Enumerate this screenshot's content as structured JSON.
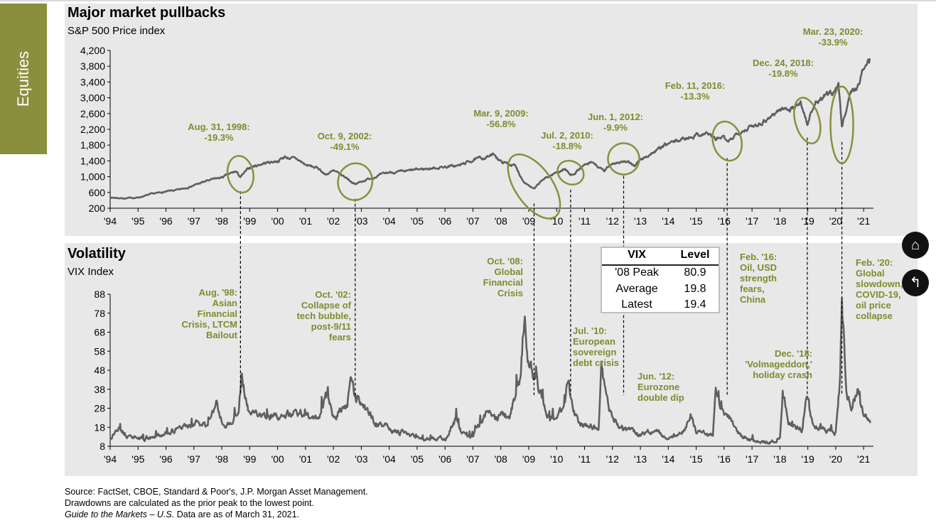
{
  "side_tab": "Equities",
  "top_title": "Major market pullbacks",
  "top_subtitle": "S&P 500 Price index",
  "bottom_title": "Volatility",
  "bottom_subtitle": "VIX Index",
  "vix_table": {
    "headers": [
      "VIX",
      "Level"
    ],
    "rows": [
      {
        "label": "'08 Peak",
        "value": "80.9"
      },
      {
        "label": "Average",
        "value": "19.8"
      },
      {
        "label": "Latest",
        "value": "19.4"
      }
    ]
  },
  "footer": {
    "line1": "Source: FactSet, CBOE, Standard & Poor's, J.P. Morgan Asset Management.",
    "line2": "Drawdowns are calculated as the prior peak to the lowest point.",
    "line3_italic": "Guide to the Markets – U.S.",
    "line3_rest": " Data are as of March 31, 2021."
  },
  "nav_buttons": [
    {
      "name": "home-icon",
      "glyph": "⌂"
    },
    {
      "name": "back-arrow-icon",
      "glyph": "↰"
    }
  ],
  "colors": {
    "accent": "#8a8f3e",
    "annotation": "#7e8b2e",
    "line": "#5f5f5f",
    "panel": "#e8e8e8"
  },
  "chart_data": [
    {
      "type": "line",
      "title": "Major market pullbacks",
      "ylabel": "S&P 500 Price index",
      "ylim": [
        200,
        4200
      ],
      "yticks": [
        200,
        600,
        1000,
        1400,
        1800,
        2200,
        2600,
        3000,
        3400,
        3800,
        4200
      ],
      "ytick_labels": [
        "200",
        "600",
        "1,000",
        "1,400",
        "1,800",
        "2,200",
        "2,600",
        "3,000",
        "3,400",
        "3,800",
        "4,200"
      ],
      "xlim": [
        1994,
        2021.25
      ],
      "xticks": [
        "'94",
        "'95",
        "'96",
        "'97",
        "'98",
        "'99",
        "'00",
        "'01",
        "'02",
        "'03",
        "'04",
        "'05",
        "'06",
        "'07",
        "'08",
        "'09",
        "'10",
        "'11",
        "'12",
        "'13",
        "'14",
        "'15",
        "'16",
        "'17",
        "'18",
        "'19",
        "'20",
        "'21"
      ],
      "series": [
        {
          "x": [
            1994,
            1994.5,
            1995,
            1995.5,
            1996,
            1996.5,
            1997,
            1997.5,
            1998,
            1998.5,
            1998.67,
            1999,
            1999.5,
            2000,
            2000.25,
            2000.7,
            2001,
            2001.5,
            2001.7,
            2002,
            2002.5,
            2002.78,
            2003,
            2003.5,
            2004,
            2004.5,
            2005,
            2005.5,
            2006,
            2006.5,
            2007,
            2007.5,
            2007.78,
            2008,
            2008.5,
            2008.8,
            2009.19,
            2009.5,
            2010,
            2010.3,
            2010.5,
            2011,
            2011.3,
            2011.7,
            2012,
            2012.4,
            2012.8,
            2013,
            2013.5,
            2014,
            2014.5,
            2015,
            2015.4,
            2015.7,
            2016,
            2016.11,
            2016.5,
            2017,
            2017.5,
            2018,
            2018.5,
            2018.75,
            2018.98,
            2019.3,
            2019.5,
            2020,
            2020.1,
            2020.22,
            2020.5,
            2020.8,
            2021,
            2021.24
          ],
          "y": [
            470,
            450,
            470,
            560,
            620,
            670,
            780,
            900,
            980,
            1130,
            990,
            1230,
            1340,
            1400,
            1500,
            1440,
            1300,
            1200,
            1050,
            1140,
            960,
            800,
            880,
            1000,
            1110,
            1120,
            1180,
            1210,
            1250,
            1280,
            1420,
            1500,
            1560,
            1380,
            1280,
            900,
            680,
            920,
            1110,
            1200,
            1030,
            1280,
            1350,
            1130,
            1350,
            1380,
            1290,
            1420,
            1630,
            1830,
            1950,
            2060,
            2110,
            1950,
            2000,
            1830,
            2140,
            2270,
            2450,
            2700,
            2750,
            2900,
            2350,
            2900,
            2950,
            3230,
            3380,
            2240,
            3100,
            3300,
            3750,
            3970
          ]
        }
      ],
      "annotations": [
        {
          "date": "Aug. 31, 1998:",
          "drawdown": "-19.3%"
        },
        {
          "date": "Oct. 9, 2002:",
          "drawdown": "-49.1%"
        },
        {
          "date": "Mar. 9, 2009:",
          "drawdown": "-56.8%"
        },
        {
          "date": "Jul. 2, 2010:",
          "drawdown": "-18.8%"
        },
        {
          "date": "Jun. 1, 2012:",
          "drawdown": "-9.9%"
        },
        {
          "date": "Feb. 11, 2016:",
          "drawdown": "-13.3%"
        },
        {
          "date": "Dec. 24, 2018:",
          "drawdown": "-19.8%"
        },
        {
          "date": "Mar. 23, 2020:",
          "drawdown": "-33.9%"
        }
      ]
    },
    {
      "type": "line",
      "title": "Volatility",
      "ylabel": "VIX Index",
      "ylim": [
        8,
        88
      ],
      "yticks": [
        8,
        18,
        28,
        38,
        48,
        58,
        68,
        78,
        88
      ],
      "xlim": [
        1994,
        2021.25
      ],
      "xticks": [
        "'94",
        "'95",
        "'96",
        "'97",
        "'98",
        "'99",
        "'00",
        "'01",
        "'02",
        "'03",
        "'04",
        "'05",
        "'06",
        "'07",
        "'08",
        "'09",
        "'10",
        "'11",
        "'12",
        "'13",
        "'14",
        "'15",
        "'16",
        "'17",
        "'18",
        "'19",
        "'20",
        "'21"
      ],
      "series": [
        {
          "x": [
            1994,
            1994.3,
            1994.6,
            1995,
            1995.5,
            1996,
            1996.5,
            1997,
            1997.5,
            1997.8,
            1998,
            1998.4,
            1998.6,
            1998.7,
            1998.8,
            1999,
            1999.5,
            2000,
            2000.5,
            2001,
            2001.5,
            2001.7,
            2001.9,
            2002,
            2002.5,
            2002.6,
            2002.8,
            2003,
            2003.5,
            2004,
            2004.5,
            2005,
            2005.5,
            2006,
            2006.4,
            2006.6,
            2007,
            2007.2,
            2007.6,
            2007.8,
            2008,
            2008.3,
            2008.7,
            2008.85,
            2009,
            2009.3,
            2009.6,
            2010,
            2010.3,
            2010.4,
            2010.6,
            2011,
            2011.5,
            2011.6,
            2011.8,
            2012,
            2012.5,
            2013,
            2013.5,
            2014,
            2014.6,
            2014.8,
            2015,
            2015.6,
            2015.7,
            2016,
            2016.1,
            2016.5,
            2017,
            2017.5,
            2018,
            2018.1,
            2018.3,
            2018.8,
            2018.95,
            2019.2,
            2019.6,
            2020,
            2020.15,
            2020.22,
            2020.4,
            2020.6,
            2020.8,
            2021,
            2021.24
          ],
          "y": [
            12,
            18,
            14,
            12,
            12,
            15,
            17,
            20,
            19,
            30,
            21,
            20,
            28,
            46,
            38,
            24,
            25,
            23,
            25,
            25,
            22,
            36,
            31,
            24,
            30,
            45,
            34,
            30,
            21,
            17,
            15,
            13,
            12,
            12,
            22,
            15,
            13,
            19,
            28,
            22,
            25,
            23,
            45,
            81,
            50,
            40,
            28,
            21,
            30,
            45,
            24,
            19,
            18,
            48,
            32,
            22,
            18,
            14,
            16,
            12,
            17,
            26,
            15,
            14,
            40,
            22,
            27,
            15,
            11,
            10,
            12,
            37,
            20,
            17,
            36,
            18,
            17,
            15,
            40,
            83,
            35,
            28,
            40,
            25,
            19
          ]
        }
      ],
      "annotations": [
        {
          "lines": [
            "Aug. '98:",
            "Asian",
            "Financial",
            "Crisis, LTCM",
            "Bailout"
          ]
        },
        {
          "lines": [
            "Oct. '02:",
            "Collapse of",
            "tech bubble,",
            "post-9/11",
            "fears"
          ]
        },
        {
          "lines": [
            "Oct. '08:",
            "Global",
            "Financial",
            "Crisis"
          ]
        },
        {
          "lines": [
            "Jul. '10:",
            "European",
            "sovereign",
            "debt crisis"
          ]
        },
        {
          "lines": [
            "Jun. '12:",
            "Eurozone",
            "double dip"
          ]
        },
        {
          "lines": [
            "Feb. '16:",
            "Oil, USD",
            "strength",
            "fears,",
            "China"
          ]
        },
        {
          "lines": [
            "Dec. '18:",
            "'Volmageddon,'",
            "holiday crash"
          ]
        },
        {
          "lines": [
            "Feb. '20:",
            "Global",
            "slowdown,",
            "COVID-19,",
            "oil price",
            "collapse"
          ]
        }
      ]
    }
  ]
}
